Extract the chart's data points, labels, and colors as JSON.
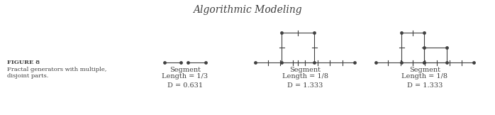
{
  "title": "Algorithmic Modeling",
  "title_fontsize": 10,
  "figure_label": "FIGURE 8",
  "figure_caption_lines": [
    "Fractal generators with multiple,",
    "disjoint parts."
  ],
  "bg_color": "#ffffff",
  "line_color": "#404040",
  "dot_color": "#404040",
  "label_fontsize": 7.0,
  "diagrams": [
    {
      "label_line1": "Segment",
      "label_line2": "Length = 1/3",
      "label_line3": "D = 0.631",
      "type": "two_segments"
    },
    {
      "label_line1": "Segment",
      "label_line2": "Length = 1/8",
      "label_line3": "D = 1.333",
      "type": "square_and_line"
    },
    {
      "label_line1": "Segment",
      "label_line2": "Length = 1/8",
      "label_line3": "D = 1.333",
      "type": "L_and_line"
    }
  ]
}
